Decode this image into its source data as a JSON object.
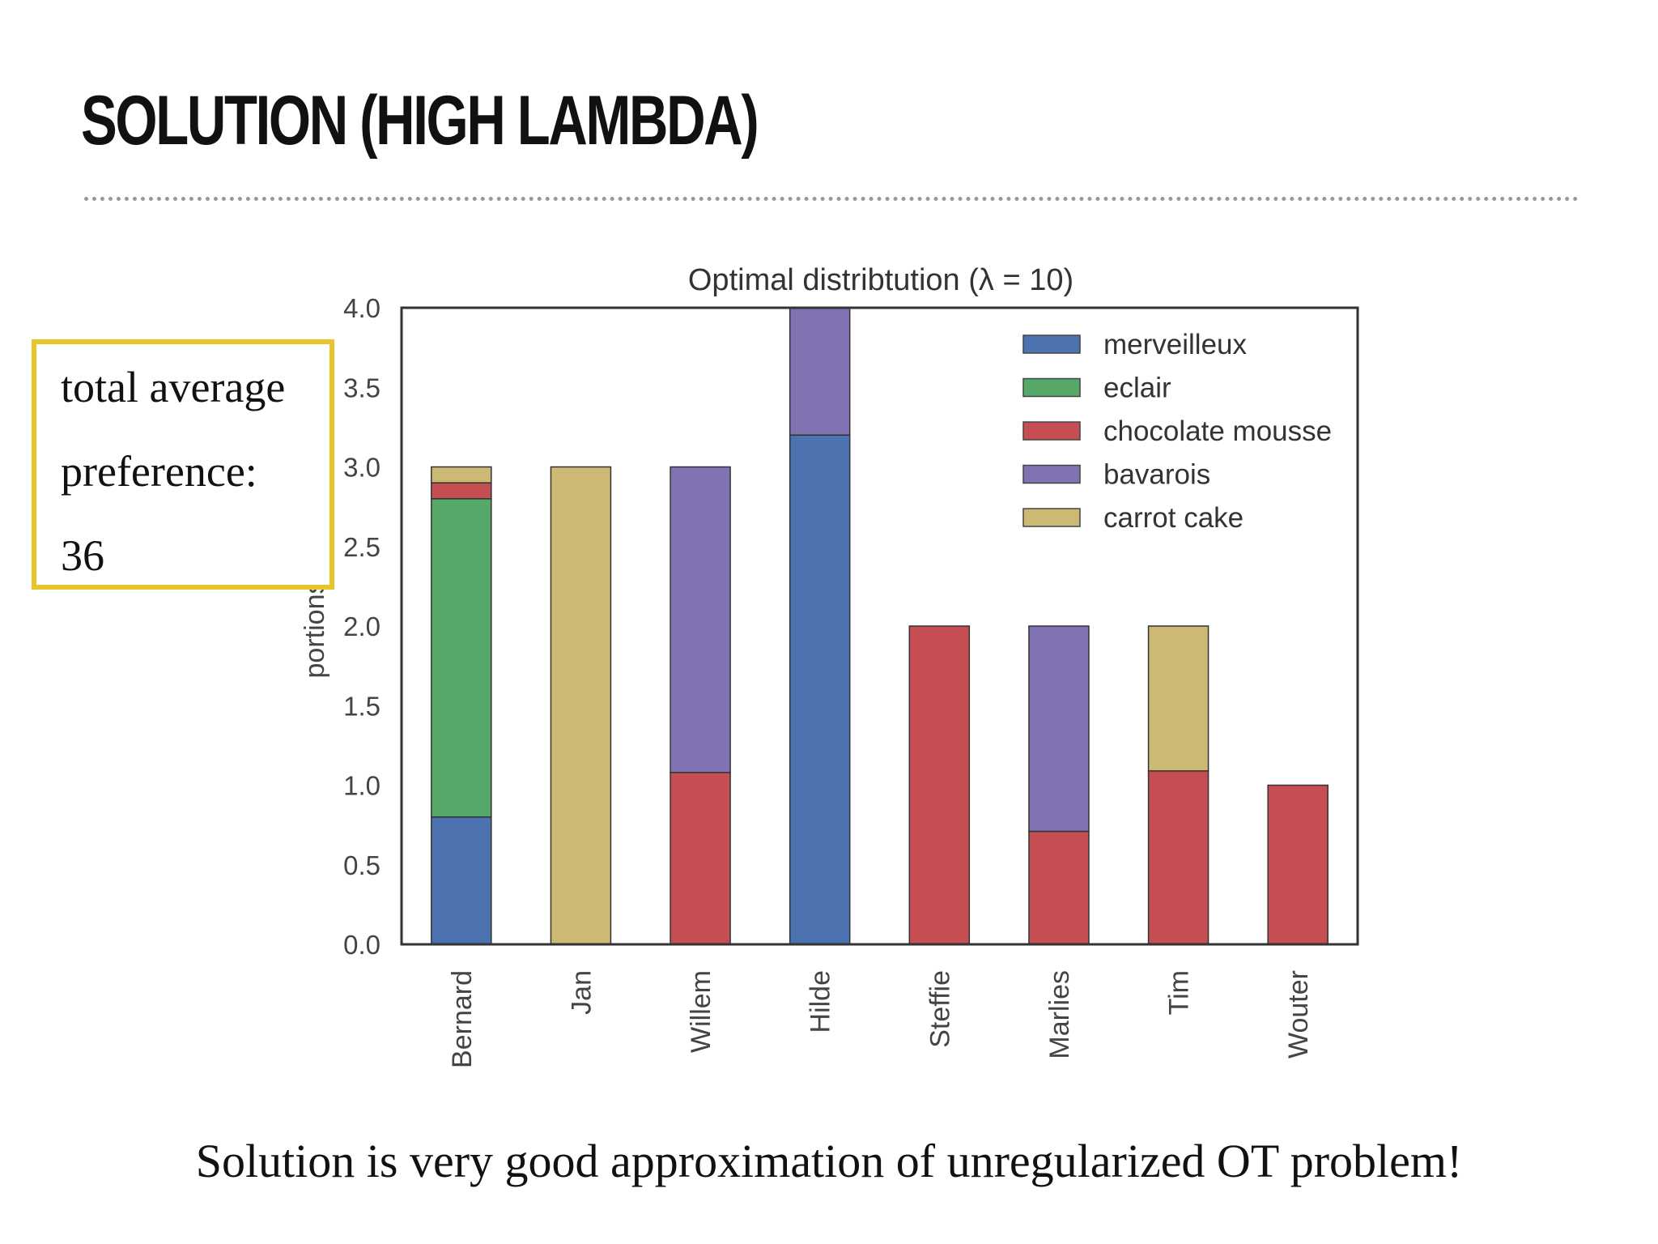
{
  "slide": {
    "title": "SOLUTION (HIGH LAMBDA)",
    "callout": [
      "total average",
      "preference:",
      "36"
    ],
    "footer": "Solution is very good approximation of unregularized OT problem!"
  },
  "chart_data": {
    "type": "bar",
    "stacked": true,
    "title": "Optimal distribtution (λ = 10)",
    "xlabel": "",
    "ylabel": "portions",
    "ylim": [
      0,
      4.0
    ],
    "yticks": [
      "0.0",
      "0.5",
      "1.0",
      "1.5",
      "2.0",
      "2.5",
      "3.0",
      "3.5",
      "4.0"
    ],
    "categories": [
      "Bernard",
      "Jan",
      "Willem",
      "Hilde",
      "Steffie",
      "Marlies",
      "Tim",
      "Wouter"
    ],
    "legend_position": "top-right",
    "grid": false,
    "series": [
      {
        "name": "merveilleux",
        "color": "#4c72b0",
        "values": [
          0.8,
          0,
          0,
          3.2,
          0,
          0,
          0,
          0
        ]
      },
      {
        "name": "eclair",
        "color": "#55a868",
        "values": [
          2.0,
          0,
          0,
          0,
          0,
          0,
          0,
          0
        ]
      },
      {
        "name": "chocolate mousse",
        "color": "#c44e52",
        "values": [
          0.1,
          0,
          1.08,
          0,
          2.0,
          0.71,
          1.09,
          1.0
        ]
      },
      {
        "name": "bavarois",
        "color": "#8172b2",
        "values": [
          0,
          0,
          1.92,
          0.8,
          0,
          1.29,
          0,
          0
        ]
      },
      {
        "name": "carrot cake",
        "color": "#ccb974",
        "values": [
          0.1,
          3.0,
          0,
          0,
          0,
          0,
          0.91,
          0
        ]
      }
    ]
  }
}
